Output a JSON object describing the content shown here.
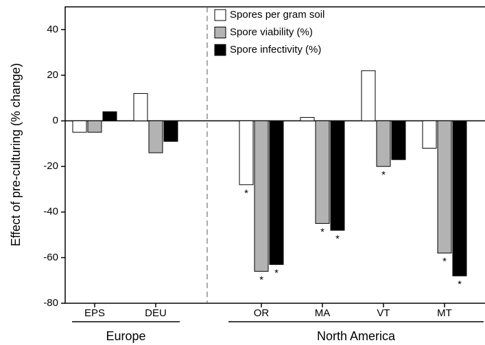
{
  "chart_data": {
    "type": "bar",
    "y_label": "Effect of pre-culturing (% change)",
    "groups": [
      {
        "label": "Europe",
        "categories": [
          "EPS",
          "DEU"
        ]
      },
      {
        "label": "North America",
        "categories": [
          "OR",
          "MA",
          "VT",
          "MT"
        ]
      }
    ],
    "series": [
      {
        "name": "Spores per gram soil",
        "color": "#ffffff",
        "values": [
          -5,
          12,
          -28,
          1.5,
          22,
          -12
        ],
        "markers": [
          null,
          null,
          "*",
          null,
          null,
          null
        ]
      },
      {
        "name": "Spore viability (%)",
        "color": "#b3b3b3",
        "values": [
          -5,
          -14,
          -66,
          -45,
          -20,
          -58
        ],
        "markers": [
          null,
          null,
          "*",
          "*",
          "*",
          "*"
        ]
      },
      {
        "name": "Spore infectivity (%)",
        "color": "#000000",
        "values": [
          4,
          -9,
          -63,
          -48,
          -17,
          -68
        ],
        "markers": [
          null,
          null,
          "*",
          "*",
          null,
          "*"
        ]
      }
    ],
    "ylim": [
      -80,
      50
    ],
    "yticks": [
      -80,
      -60,
      -40,
      -20,
      0,
      20,
      40
    ]
  }
}
